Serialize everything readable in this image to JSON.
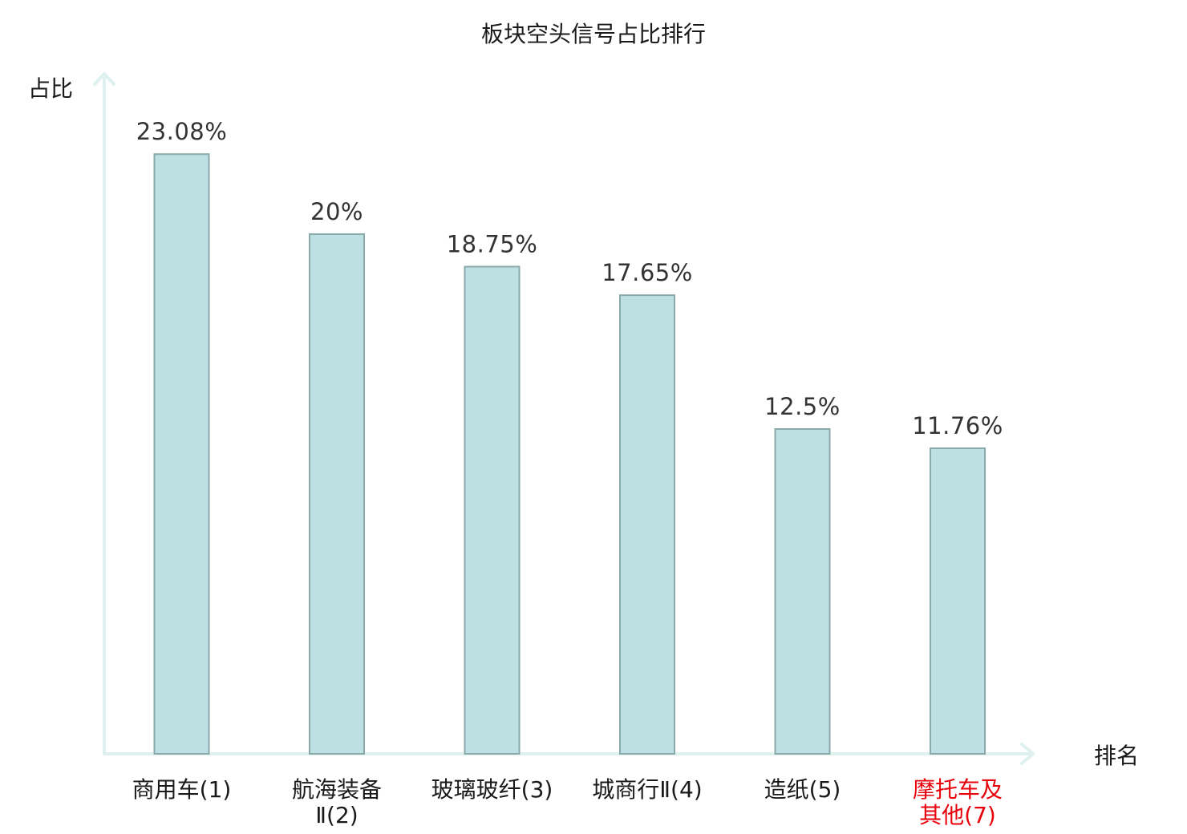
{
  "chart_data": {
    "type": "bar",
    "title": "板块空头信号占比排行",
    "xlabel": "排名",
    "ylabel": "占比",
    "ylim": [
      0,
      25
    ],
    "grid": false,
    "categories": [
      {
        "lines": [
          "商用车(1)"
        ],
        "highlight": false
      },
      {
        "lines": [
          "航海装备",
          "Ⅱ(2)"
        ],
        "highlight": false
      },
      {
        "lines": [
          "玻璃玻纤(3)"
        ],
        "highlight": false
      },
      {
        "lines": [
          "城商行Ⅱ(4)"
        ],
        "highlight": false
      },
      {
        "lines": [
          "造纸(5)"
        ],
        "highlight": false
      },
      {
        "lines": [
          "摩托车及",
          "其他(7)"
        ],
        "highlight": true
      }
    ],
    "values": [
      23.08,
      20,
      18.75,
      17.65,
      12.5,
      11.76
    ],
    "value_labels": [
      "23.08%",
      "20%",
      "18.75%",
      "17.65%",
      "12.5%",
      "11.76%"
    ],
    "colors": {
      "bar_fill": "#bde0e3",
      "bar_stroke": "#8aa9ab",
      "axis": "#dff1ef",
      "highlight_text": "#e8000b"
    }
  }
}
